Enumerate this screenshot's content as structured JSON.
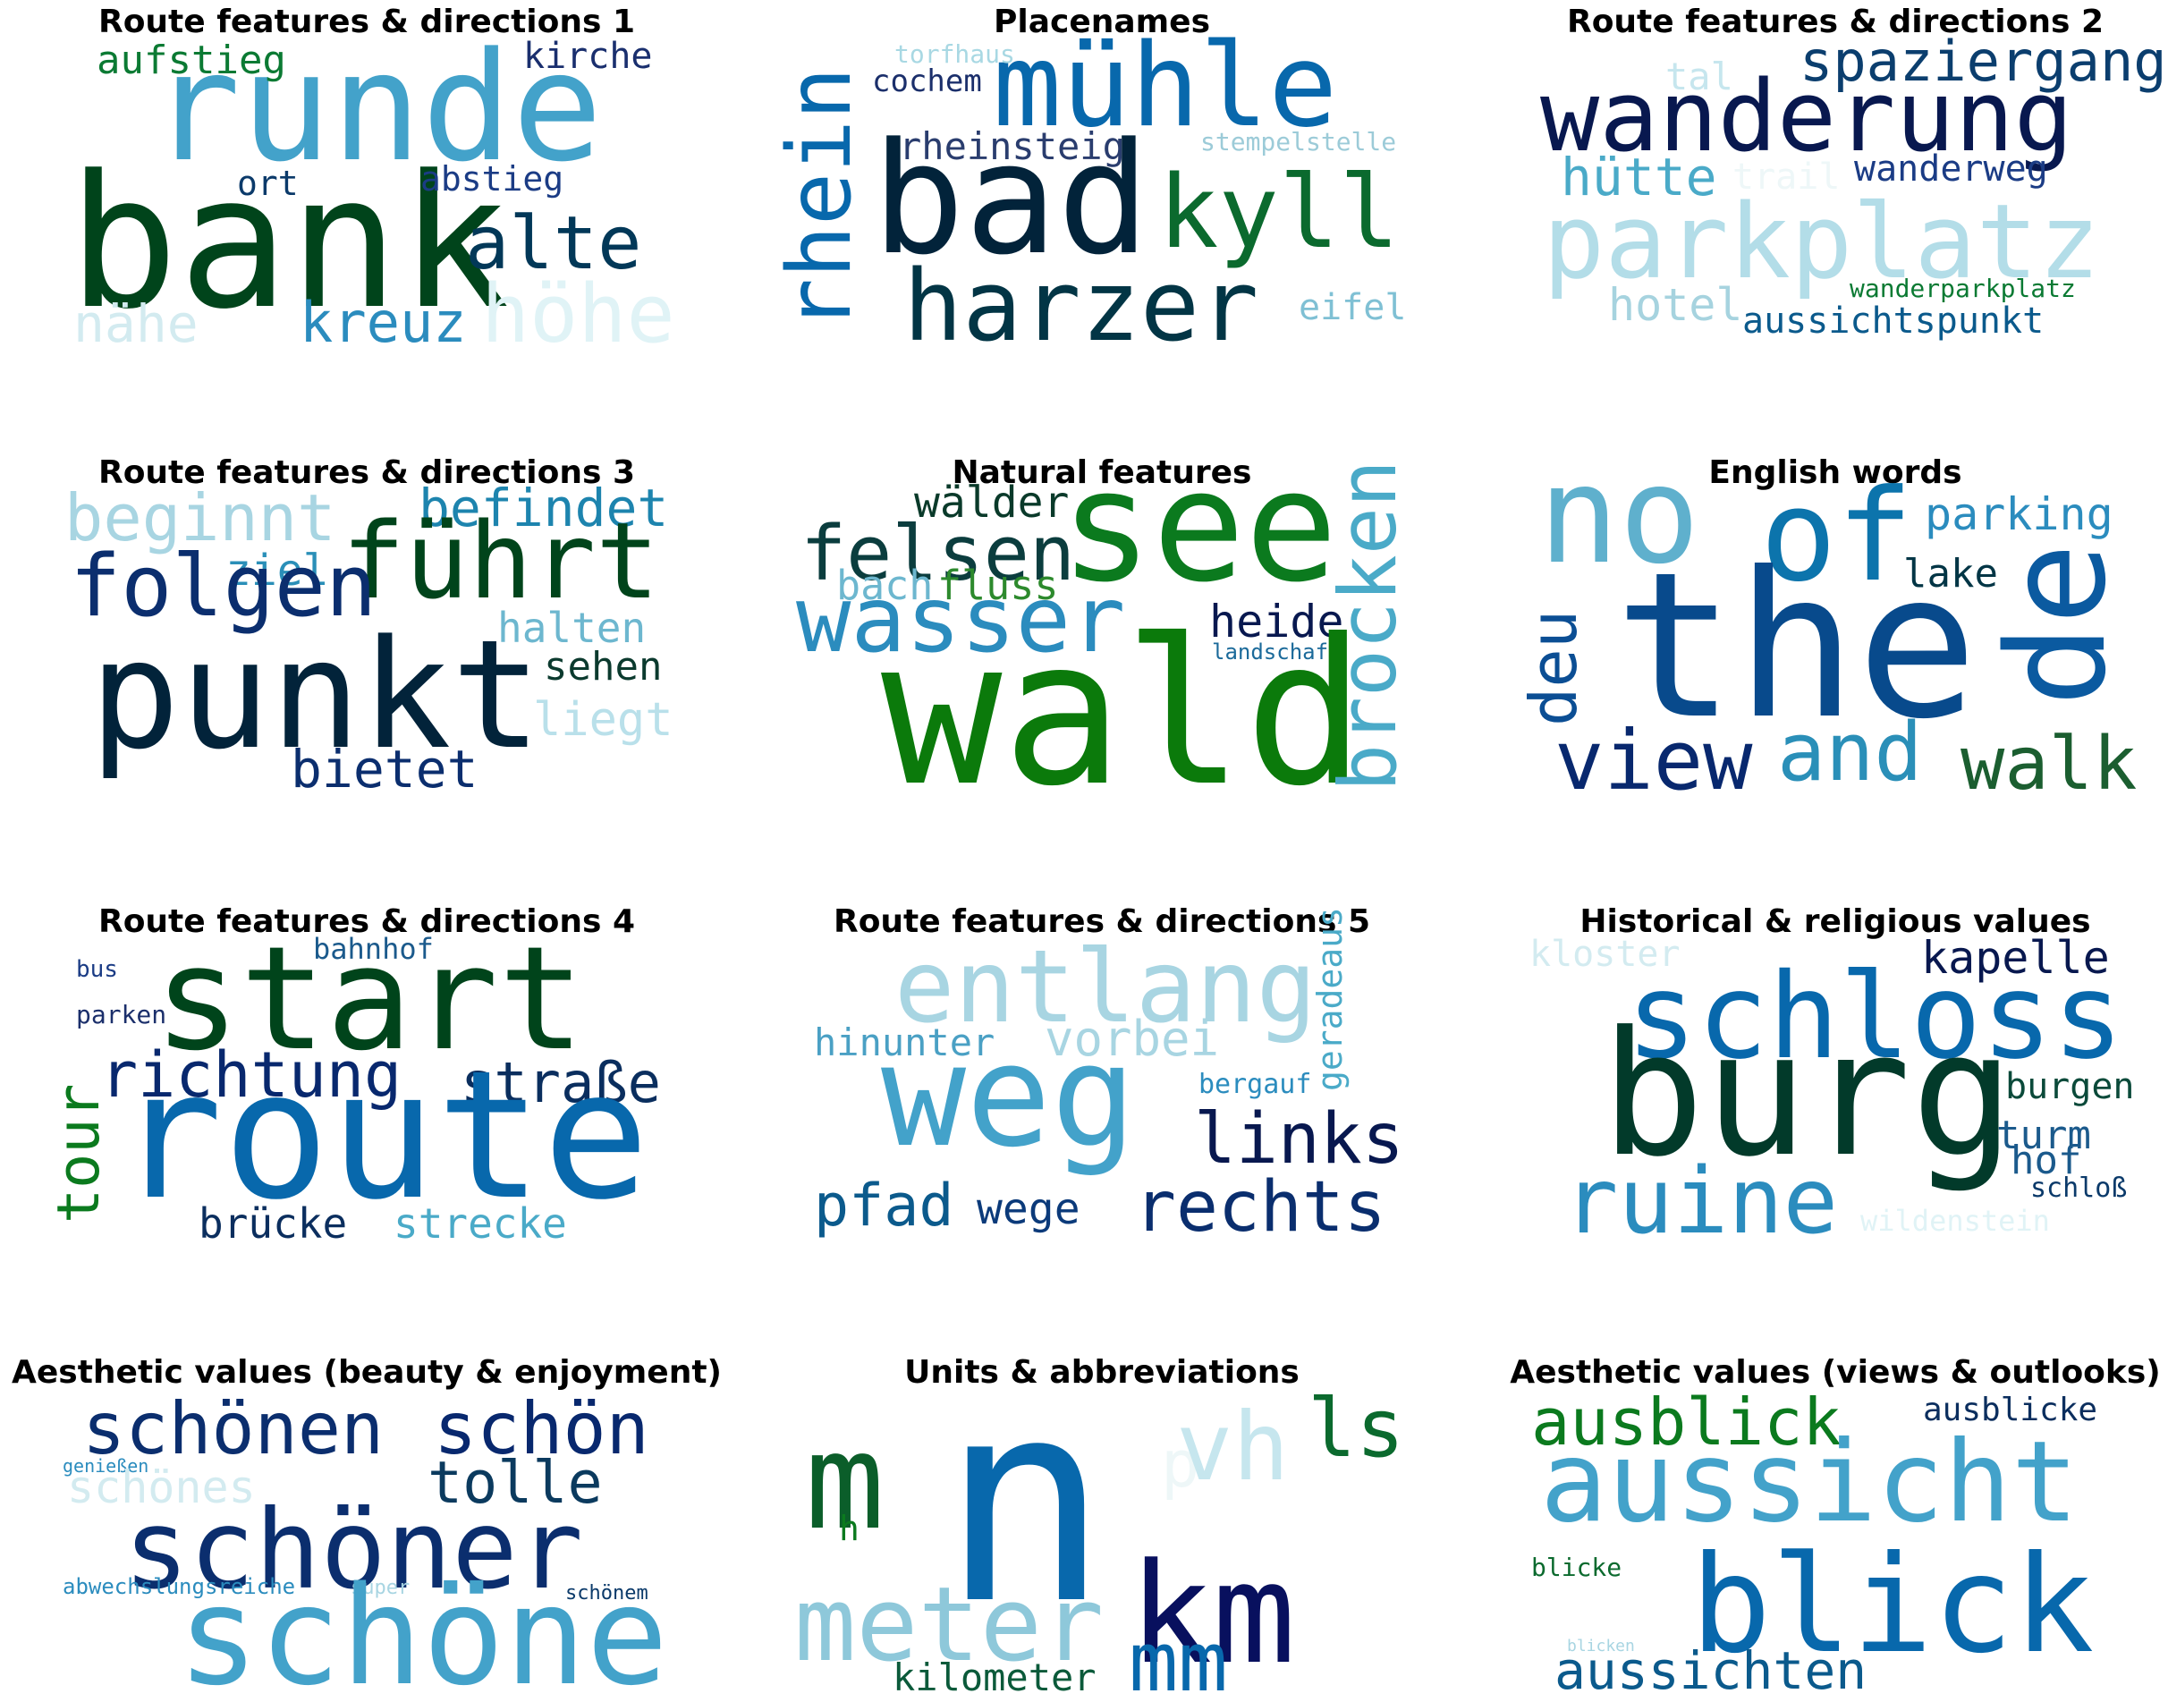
{
  "chart_data": [
    {
      "type": "wordcloud",
      "title": "Route features & directions 1",
      "words": [
        {
          "text": "runde",
          "color": "#43a2ca"
        },
        {
          "text": "bank",
          "color": "#00441b"
        },
        {
          "text": "alte",
          "color": "#023858"
        },
        {
          "text": "aufstieg",
          "color": "#0b7a33"
        },
        {
          "text": "kirche",
          "color": "#1a2f6e"
        },
        {
          "text": "ort",
          "color": "#0b3a6a"
        },
        {
          "text": "abstieg",
          "color": "#1b3c85"
        },
        {
          "text": "nähe",
          "color": "#d3ebf0"
        },
        {
          "text": "kreuz",
          "color": "#2b8cbe"
        },
        {
          "text": "höhe",
          "color": "#e0f3f6"
        }
      ]
    },
    {
      "type": "wordcloud",
      "title": "Placenames",
      "words": [
        {
          "text": "mühle",
          "color": "#0868ac"
        },
        {
          "text": "torfhaus",
          "color": "#a8d8e3"
        },
        {
          "text": "cochem",
          "color": "#1b2f6b"
        },
        {
          "text": "rhein",
          "color": "#0868ac"
        },
        {
          "text": "rheinsteig",
          "color": "#2a3d6e"
        },
        {
          "text": "stempelstelle",
          "color": "#9ccbd8"
        },
        {
          "text": "bad",
          "color": "#02233a"
        },
        {
          "text": "kyll",
          "color": "#0b6a2e"
        },
        {
          "text": "harzer",
          "color": "#023545"
        },
        {
          "text": "eifel",
          "color": "#7fc0d4"
        }
      ]
    },
    {
      "type": "wordcloud",
      "title": "Route features & directions 2",
      "words": [
        {
          "text": "tal",
          "color": "#c6e6ee"
        },
        {
          "text": "spaziergang",
          "color": "#0b3e6e"
        },
        {
          "text": "wanderung",
          "color": "#08184f"
        },
        {
          "text": "hütte",
          "color": "#4aaac8"
        },
        {
          "text": "trail",
          "color": "#eef7f8"
        },
        {
          "text": "wanderweg",
          "color": "#1b3c85"
        },
        {
          "text": "parkplatz",
          "color": "#b3dde8"
        },
        {
          "text": "hotel",
          "color": "#a6d3df"
        },
        {
          "text": "wanderparkplatz",
          "color": "#0b7a33"
        },
        {
          "text": "aussichtspunkt",
          "color": "#0b5a8c"
        }
      ]
    },
    {
      "type": "wordcloud",
      "title": "Route features & directions 3",
      "words": [
        {
          "text": "beginnt",
          "color": "#a8d5e2"
        },
        {
          "text": "befindet",
          "color": "#1d84ae"
        },
        {
          "text": "ziel",
          "color": "#2a8fb8"
        },
        {
          "text": "führt",
          "color": "#00441b"
        },
        {
          "text": "folgen",
          "color": "#0b2e6e"
        },
        {
          "text": "halten",
          "color": "#6db7cf"
        },
        {
          "text": "sehen",
          "color": "#0b3a2e"
        },
        {
          "text": "punkt",
          "color": "#02233a"
        },
        {
          "text": "liegt",
          "color": "#b9e0ea"
        },
        {
          "text": "bietet",
          "color": "#0b2e6e"
        }
      ]
    },
    {
      "type": "wordcloud",
      "title": "Natural features",
      "words": [
        {
          "text": "wälder",
          "color": "#0a3a2a"
        },
        {
          "text": "felsen",
          "color": "#0b3d3e"
        },
        {
          "text": "see",
          "color": "#0b7a1e"
        },
        {
          "text": "bach",
          "color": "#6db7cf"
        },
        {
          "text": "fluss",
          "color": "#2d8a2d"
        },
        {
          "text": "wasser",
          "color": "#2b8cbe"
        },
        {
          "text": "heide",
          "color": "#08184f"
        },
        {
          "text": "landschaft",
          "color": "#1b6a9a"
        },
        {
          "text": "wald",
          "color": "#0b7a0b"
        },
        {
          "text": "brocken",
          "color": "#4aaac8"
        }
      ]
    },
    {
      "type": "wordcloud",
      "title": "English words",
      "words": [
        {
          "text": "no",
          "color": "#5fb0cd"
        },
        {
          "text": "of",
          "color": "#0c74ac"
        },
        {
          "text": "parking",
          "color": "#2b8cbe"
        },
        {
          "text": "lake",
          "color": "#023545"
        },
        {
          "text": "deu",
          "color": "#0b4e94"
        },
        {
          "text": "the",
          "color": "#084a8c"
        },
        {
          "text": "de",
          "color": "#0b5aa0"
        },
        {
          "text": "view",
          "color": "#08286e"
        },
        {
          "text": "and",
          "color": "#2a8fb8"
        },
        {
          "text": "walk",
          "color": "#1b5e30"
        }
      ]
    },
    {
      "type": "wordcloud",
      "title": "Route features & directions 4",
      "words": [
        {
          "text": "bus",
          "color": "#1b3c85"
        },
        {
          "text": "bahnhof",
          "color": "#1b5a8c"
        },
        {
          "text": "start",
          "color": "#00441b"
        },
        {
          "text": "parken",
          "color": "#1b2f6b"
        },
        {
          "text": "richtung",
          "color": "#08286e"
        },
        {
          "text": "straße",
          "color": "#0a2e5e"
        },
        {
          "text": "tour",
          "color": "#0b7a1e"
        },
        {
          "text": "route",
          "color": "#0868ac"
        },
        {
          "text": "brücke",
          "color": "#0b2e5e"
        },
        {
          "text": "strecke",
          "color": "#4aaac8"
        }
      ]
    },
    {
      "type": "wordcloud",
      "title": "Route features & directions 5",
      "words": [
        {
          "text": "entlang",
          "color": "#a8d5e2"
        },
        {
          "text": "geradeaus",
          "color": "#4aaac8"
        },
        {
          "text": "hinunter",
          "color": "#4aa0c4"
        },
        {
          "text": "vorbei",
          "color": "#a8d5e2"
        },
        {
          "text": "weg",
          "color": "#43a2ca"
        },
        {
          "text": "bergauf",
          "color": "#2b8cbe"
        },
        {
          "text": "links",
          "color": "#08184f"
        },
        {
          "text": "pfad",
          "color": "#0b5a8c"
        },
        {
          "text": "wege",
          "color": "#0b3a7a"
        },
        {
          "text": "rechts",
          "color": "#0a2e6e"
        }
      ]
    },
    {
      "type": "wordcloud",
      "title": "Historical & religious values",
      "words": [
        {
          "text": "kloster",
          "color": "#d3ebf0"
        },
        {
          "text": "kapelle",
          "color": "#08184f"
        },
        {
          "text": "schloss",
          "color": "#0868ac"
        },
        {
          "text": "burg",
          "color": "#023a2a"
        },
        {
          "text": "burgen",
          "color": "#0b4a3a"
        },
        {
          "text": "turm",
          "color": "#1b5a8c"
        },
        {
          "text": "hof",
          "color": "#1b5a8c"
        },
        {
          "text": "schloß",
          "color": "#0b3a6a"
        },
        {
          "text": "ruine",
          "color": "#2b8cbe"
        },
        {
          "text": "wildenstein",
          "color": "#e0f3f6"
        }
      ]
    },
    {
      "type": "wordcloud",
      "title": "Aesthetic values (beauty & enjoyment)",
      "words": [
        {
          "text": "genießen",
          "color": "#2b8cbe"
        },
        {
          "text": "schönen",
          "color": "#0b2e6e"
        },
        {
          "text": "schön",
          "color": "#08286e"
        },
        {
          "text": "tolle",
          "color": "#0b3a5e"
        },
        {
          "text": "schönes",
          "color": "#d3ebf0"
        },
        {
          "text": "schöner",
          "color": "#0b2e6e"
        },
        {
          "text": "abwechslungsreiche",
          "color": "#2b8cbe"
        },
        {
          "text": "super",
          "color": "#a8d5e2"
        },
        {
          "text": "schönem",
          "color": "#0b3a6a"
        },
        {
          "text": "schöne",
          "color": "#43a2ca"
        }
      ]
    },
    {
      "type": "wordcloud",
      "title": "Units & abbreviations",
      "words": [
        {
          "text": "m",
          "color": "#0b5e2a"
        },
        {
          "text": "n",
          "color": "#0868ac"
        },
        {
          "text": "h",
          "color": "#0b7a1e"
        },
        {
          "text": "p",
          "color": "#eef7f8"
        },
        {
          "text": "vh",
          "color": "#c6e6ee"
        },
        {
          "text": "ls",
          "color": "#0b6a2e"
        },
        {
          "text": "km",
          "color": "#08105e"
        },
        {
          "text": "meter",
          "color": "#8ec8da"
        },
        {
          "text": "mm",
          "color": "#0868ac"
        },
        {
          "text": "kilometer",
          "color": "#0b5a3a"
        }
      ]
    },
    {
      "type": "wordcloud",
      "title": "Aesthetic values (views & outlooks)",
      "words": [
        {
          "text": "ausblick",
          "color": "#0b7a1e"
        },
        {
          "text": "ausblicke",
          "color": "#0b2e5e"
        },
        {
          "text": "aussicht",
          "color": "#43a2ca"
        },
        {
          "text": "blicke",
          "color": "#0b6a2e"
        },
        {
          "text": "blick",
          "color": "#0868ac"
        },
        {
          "text": "blicken",
          "color": "#a8d5e2"
        },
        {
          "text": "aussichten",
          "color": "#0b5a8c"
        }
      ]
    }
  ]
}
